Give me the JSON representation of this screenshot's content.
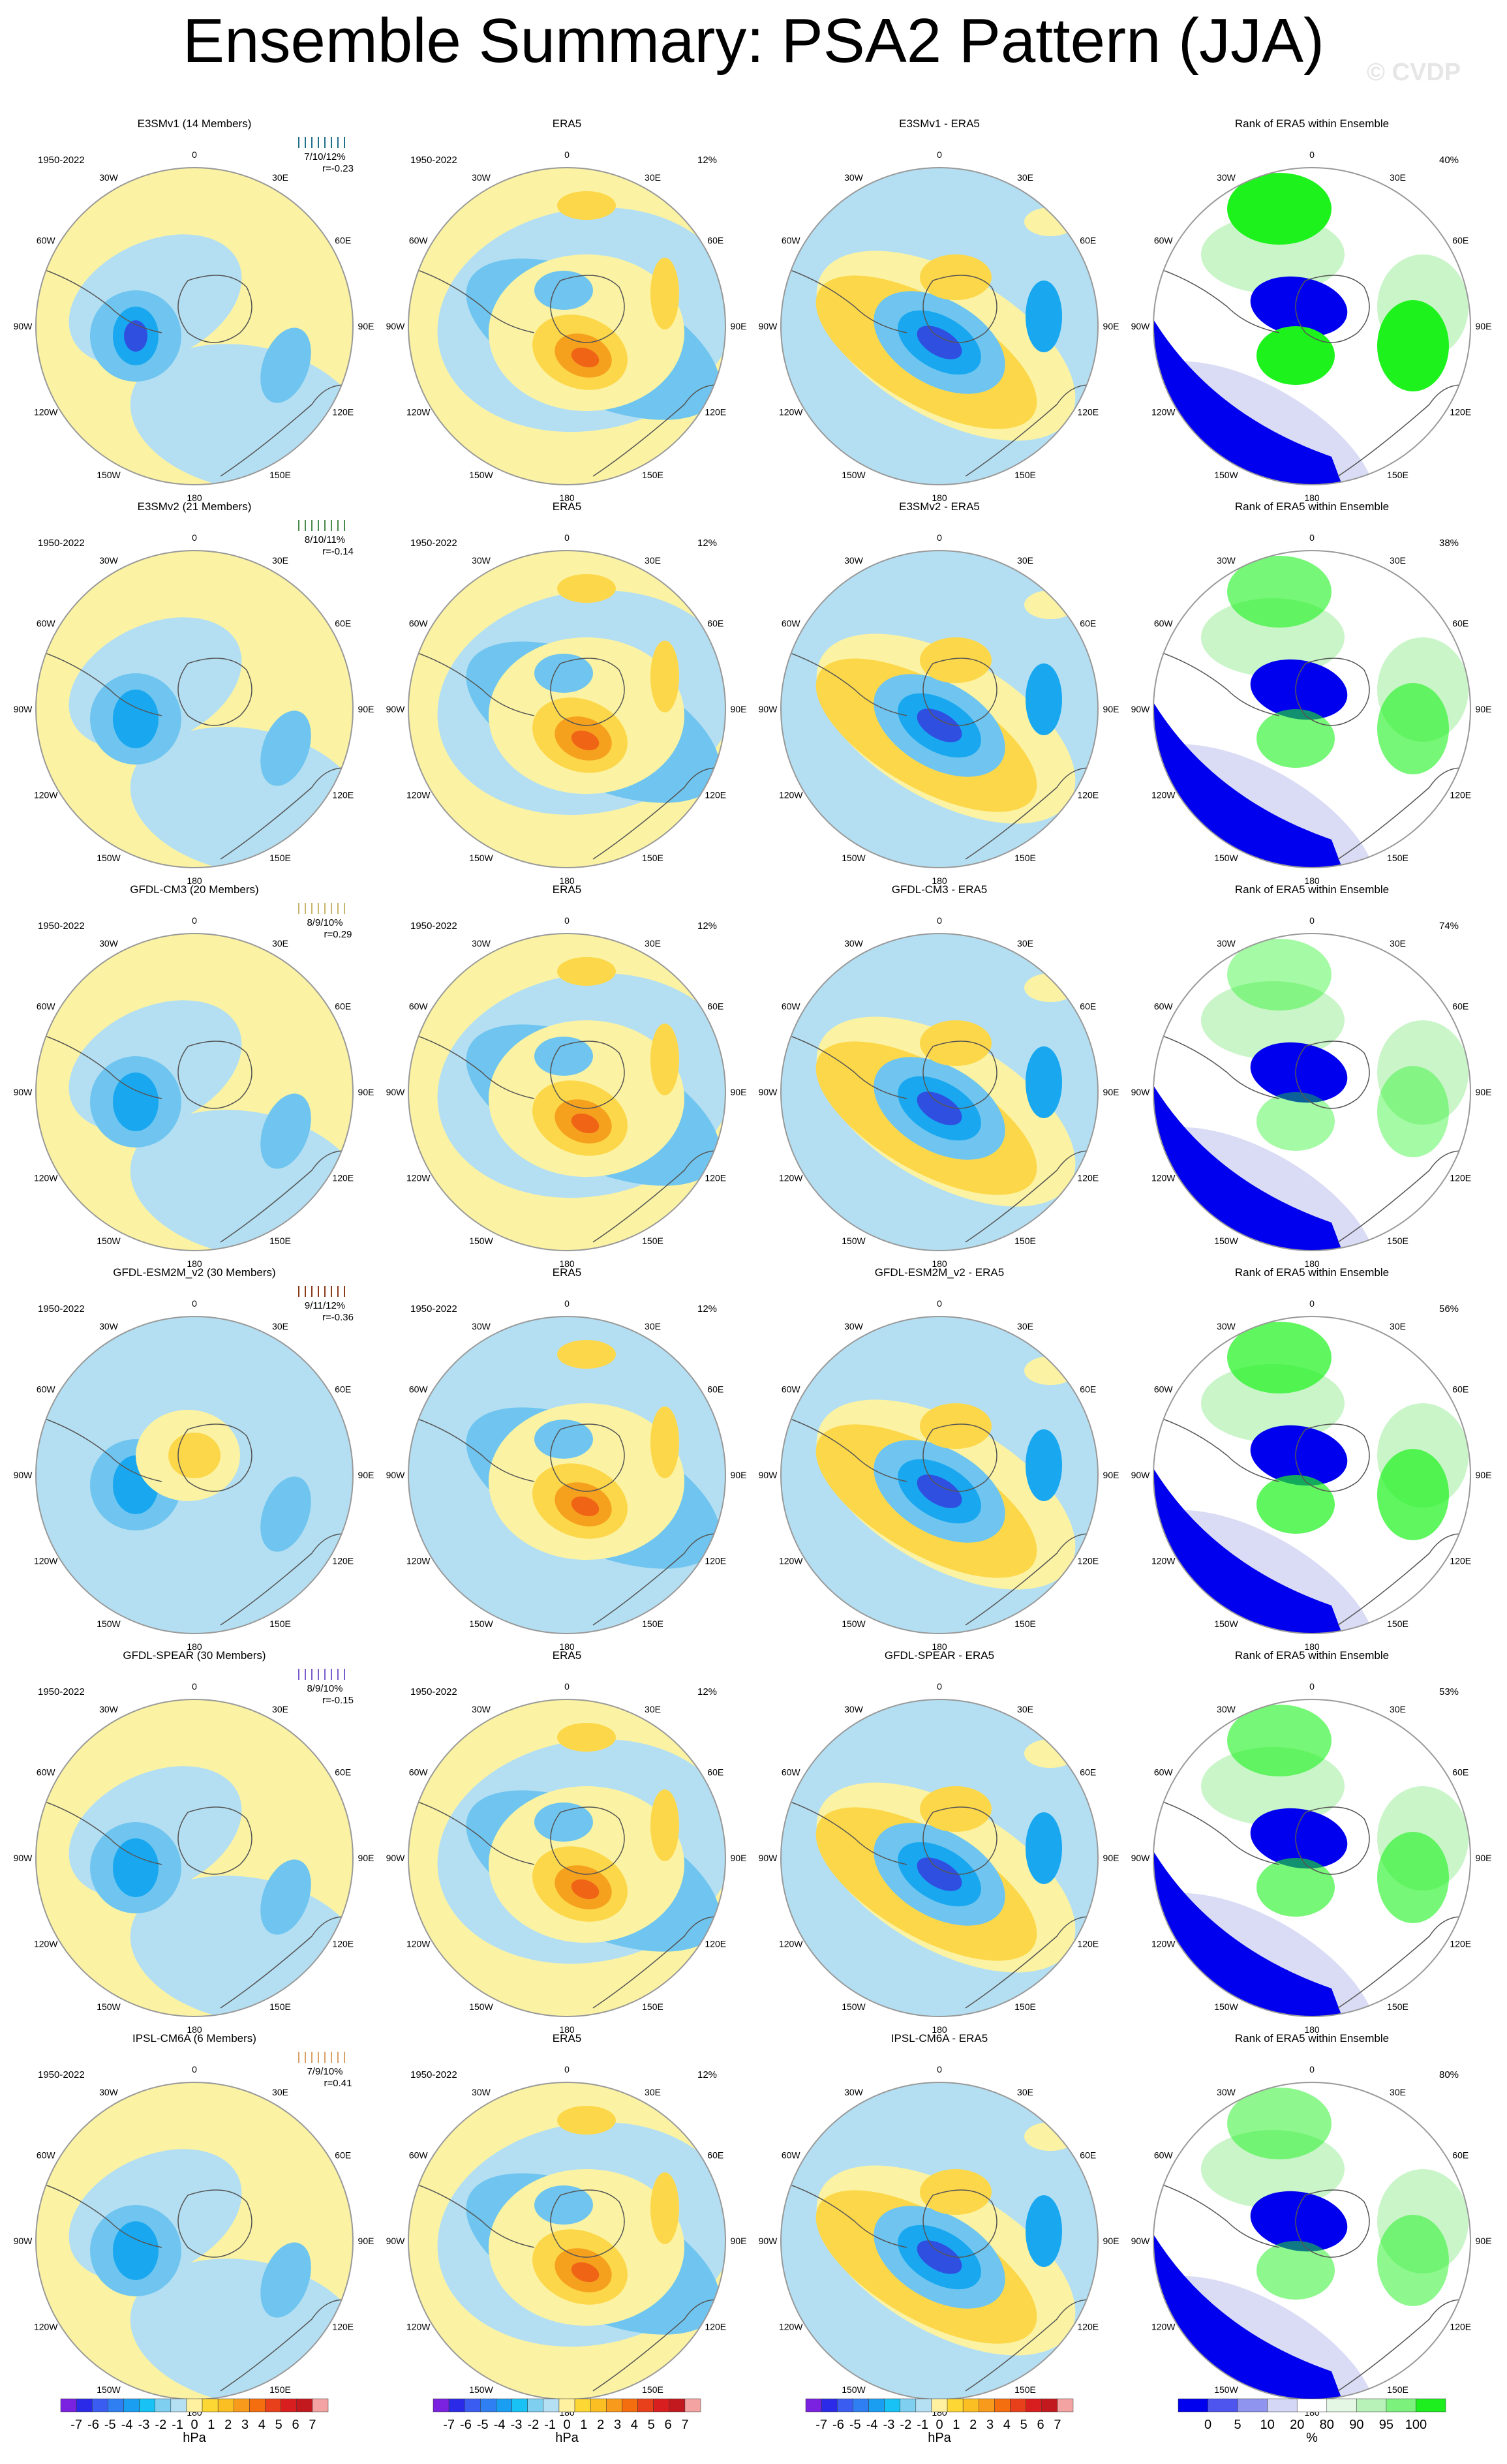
{
  "title": "Ensemble Summary: PSA2 Pattern (JJA)",
  "watermark": "© CVDP",
  "period": "1950-2022",
  "longitudes": [
    "0",
    "30E",
    "60E",
    "90E",
    "120E",
    "150E",
    "180",
    "150W",
    "120W",
    "90W",
    "60W",
    "30W"
  ],
  "panel_titles": {
    "obs": "ERA5",
    "rank": "Rank of ERA5 within Ensemble",
    "diff_suffix": " - ERA5"
  },
  "obs_pct": "12%",
  "rows": [
    {
      "model": "E3SMv1 (14 Members)",
      "short": "E3SMv1",
      "color": "#1f6f8b",
      "stats": "7/10/12%",
      "r": "r=-0.23",
      "rank_pct": "40%"
    },
    {
      "model": "E3SMv2 (21 Members)",
      "short": "E3SMv2",
      "color": "#4a8a4a",
      "stats": "8/10/11%",
      "r": "r=-0.14",
      "rank_pct": "38%"
    },
    {
      "model": "GFDL-CM3 (20 Members)",
      "short": "GFDL-CM3",
      "color": "#c8b46a",
      "stats": "8/9/10%",
      "r": "r=0.29",
      "rank_pct": "74%"
    },
    {
      "model": "GFDL-ESM2M_v2 (30 Members)",
      "short": "GFDL-ESM2M_v2",
      "color": "#8b3a1a",
      "stats": "9/11/12%",
      "r": "r=-0.36",
      "rank_pct": "56%"
    },
    {
      "model": "GFDL-SPEAR (30 Members)",
      "short": "GFDL-SPEAR",
      "color": "#7a5ccc",
      "stats": "8/9/10%",
      "r": "r=-0.15",
      "rank_pct": "53%"
    },
    {
      "model": "IPSL-CM6A (6 Members)",
      "short": "IPSL-CM6A",
      "color": "#d9a066",
      "stats": "7/9/10%",
      "r": "r=0.41",
      "rank_pct": "80%"
    }
  ],
  "colorbar": {
    "unit": "hPa",
    "labels": [
      "-7",
      "-6",
      "-5",
      "-4",
      "-3",
      "-2",
      "-1",
      "0",
      "1",
      "2",
      "3",
      "4",
      "5",
      "6",
      "7"
    ],
    "colors": [
      "#7b22e0",
      "#2a2ae8",
      "#3a5cf0",
      "#2f7ff2",
      "#1a9ef2",
      "#19c2f4",
      "#7fd0f0",
      "#b5dff2",
      "#fff1a0",
      "#fdd835",
      "#fbbf24",
      "#f89b1c",
      "#f46d0e",
      "#e8401a",
      "#d81e1e",
      "#c2191f",
      "#f4a3a3"
    ]
  },
  "rank_colorbar": {
    "unit": "%",
    "labels": [
      "0",
      "5",
      "10",
      "20",
      "80",
      "90",
      "95",
      "100"
    ],
    "colors": [
      "#0000ee",
      "#4d55ee",
      "#8f94ee",
      "#d5d7f7",
      "#ffffff",
      "#e4f7e4",
      "#b8f2b8",
      "#7cf27c",
      "#1dee1d"
    ]
  },
  "palette": {
    "blue_dark": "#2f4fe0",
    "blue_mid": "#19a8f0",
    "blue_light": "#6fc5ef",
    "blue_pale": "#b4dff2",
    "yellow_pale": "#fbf3a3",
    "yellow": "#fdd74a",
    "orange": "#f5a11e",
    "red_orange": "#f06416",
    "rank_blue": "#0000ee",
    "rank_lavender": "#dadcf5",
    "rank_green": "#1df21d",
    "rank_lightgreen": "#c9f5c9"
  }
}
